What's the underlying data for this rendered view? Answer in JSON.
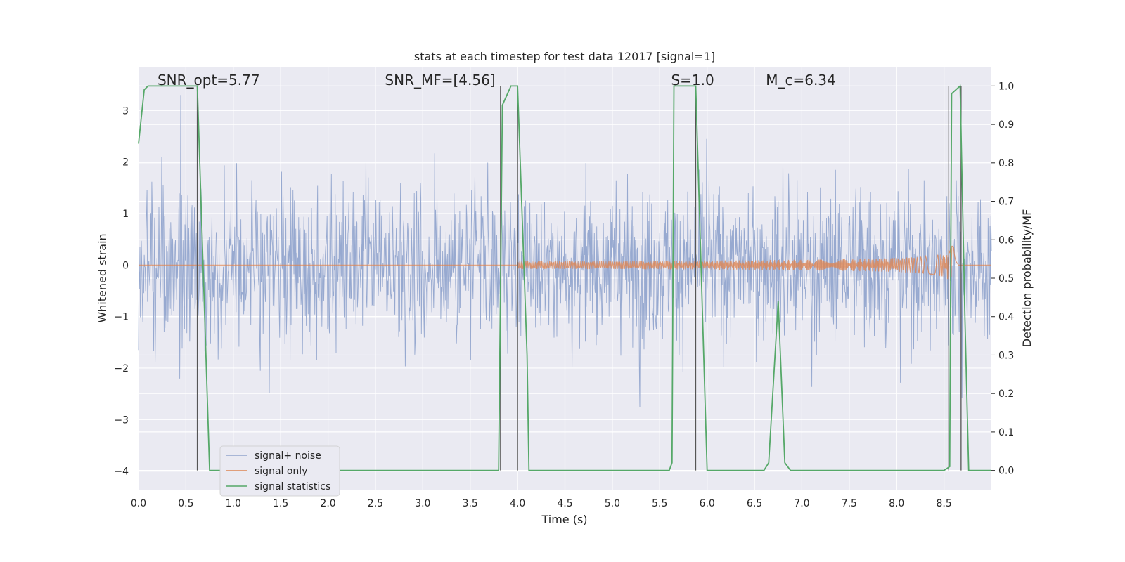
{
  "chart_data": {
    "type": "line",
    "title": "stats at each timestep for test data 12017 [signal=1]",
    "xlabel": "Time (s)",
    "ylabel_left": "Whitened strain",
    "ylabel_right": "Detection probability/MF",
    "xlim": [
      0.0,
      9.0
    ],
    "ylim_left": [
      -4.36,
      3.85
    ],
    "ylim_right": [
      -0.05,
      1.05
    ],
    "x_ticks": [
      "0.0",
      "0.5",
      "1.0",
      "1.5",
      "2.0",
      "2.5",
      "3.0",
      "3.5",
      "4.0",
      "4.5",
      "5.0",
      "5.5",
      "6.0",
      "6.5",
      "7.0",
      "7.5",
      "8.0",
      "8.5"
    ],
    "y_ticks_left": [
      "3",
      "2",
      "1",
      "0",
      "−1",
      "−2",
      "−3",
      "−4"
    ],
    "y_ticks_right": [
      "1.0",
      "0.9",
      "0.8",
      "0.7",
      "0.6",
      "0.5",
      "0.4",
      "0.3",
      "0.2",
      "0.1",
      "0.0"
    ],
    "grid": true,
    "legend_position": "lower-left",
    "annotations": [
      {
        "text": "SNR_opt=5.77",
        "x": 0.2
      },
      {
        "text": "SNR_MF=[4.56]",
        "x": 2.6
      },
      {
        "text": "S=1.0",
        "x": 5.62
      },
      {
        "text": "M_c=6.34",
        "x": 6.62
      }
    ],
    "series": [
      {
        "name": "signal+ noise",
        "color": "#92a5cd",
        "axis": "left",
        "description_values": "dense noise band roughly between -2.6 and 3.0, envelope ~1.5"
      },
      {
        "name": "signal only",
        "color": "#dd8452",
        "axis": "left",
        "chirp": {
          "start": 4.0,
          "merger": 8.6,
          "peak_amplitude": 0.7
        }
      },
      {
        "name": "signal statistics",
        "color": "#55a868",
        "axis": "right",
        "x": [
          0.0,
          0.06,
          0.1,
          0.62,
          0.75,
          3.8,
          3.84,
          3.93,
          4.0,
          4.1,
          4.12,
          5.6,
          5.63,
          5.65,
          5.88,
          6.0,
          6.6,
          6.65,
          6.75,
          6.82,
          6.88,
          8.5,
          8.56,
          8.58,
          8.67,
          8.72,
          8.76,
          9.0
        ],
        "values": [
          0.85,
          0.99,
          1.0,
          1.0,
          0.0,
          0.0,
          0.95,
          1.0,
          1.0,
          0.3,
          0.0,
          0.0,
          0.02,
          1.0,
          1.0,
          0.0,
          0.0,
          0.02,
          0.44,
          0.02,
          0.0,
          0.0,
          0.01,
          0.98,
          1.0,
          0.4,
          0.0,
          0.0
        ]
      }
    ],
    "vertical_lines": [
      0.62,
      3.82,
      4.0,
      5.88,
      8.55,
      8.68
    ]
  }
}
